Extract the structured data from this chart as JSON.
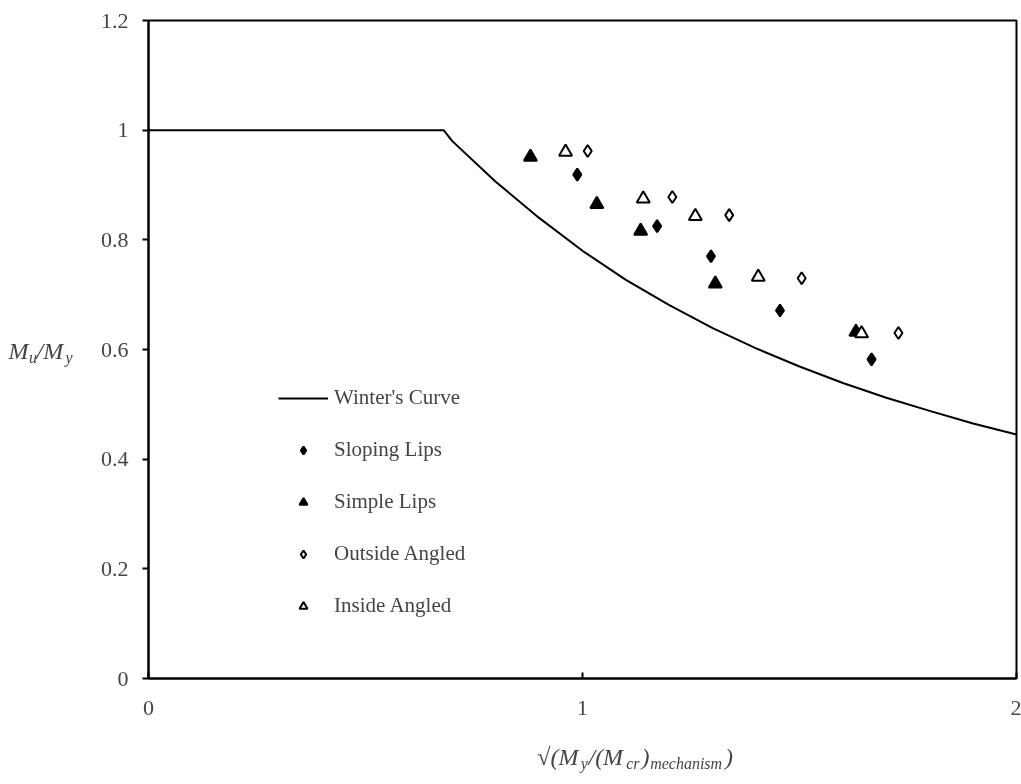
{
  "chart_data": {
    "type": "scatter",
    "xlabel": "√(M$_{y}$/(M$_{cr}$)$_{mechanism}$)",
    "ylabel": "M$_{u}$/M$_{y}$",
    "xlim": [
      0,
      2
    ],
    "xticks": [
      0,
      1,
      2
    ],
    "ylim": [
      0,
      1.2
    ],
    "yticks": [
      0,
      0.2,
      0.4,
      0.6,
      0.8,
      1,
      1.2
    ],
    "grid": false,
    "legend": "left",
    "series": [
      {
        "name": "Winter's Curve",
        "type": "line",
        "marker": "none",
        "line_style": "solid",
        "color": "#000000",
        "x": [
          0,
          0.2,
          0.4,
          0.6,
          0.68,
          0.7,
          0.8,
          0.9,
          1.0,
          1.1,
          1.2,
          1.3,
          1.4,
          1.5,
          1.6,
          1.7,
          1.8,
          1.9,
          2.0
        ],
        "values": [
          1,
          1,
          1,
          1,
          1,
          0.98,
          0.906,
          0.84,
          0.78,
          0.727,
          0.681,
          0.639,
          0.602,
          0.569,
          0.539,
          0.512,
          0.488,
          0.465,
          0.445
        ]
      },
      {
        "name": "Sloping Lips",
        "marker": "diamond",
        "color": "#000000",
        "x": [
          0.988,
          1.172,
          1.296,
          1.455,
          1.666
        ],
        "values": [
          0.919,
          0.825,
          0.77,
          0.671,
          0.582
        ]
      },
      {
        "name": "Simple Lips",
        "marker": "triangle",
        "color": "#000000",
        "x": [
          0.88,
          1.033,
          1.134,
          1.306,
          1.63
        ],
        "values": [
          0.951,
          0.865,
          0.816,
          0.72,
          0.632
        ]
      },
      {
        "name": "Outside Angled",
        "marker": "diamond-open",
        "color": "#000000",
        "x": [
          1.012,
          1.207,
          1.338,
          1.505,
          1.728
        ],
        "values": [
          0.962,
          0.878,
          0.845,
          0.73,
          0.63
        ]
      },
      {
        "name": "Inside Angled",
        "marker": "triangle-open",
        "color": "#000000",
        "x": [
          0.961,
          1.14,
          1.26,
          1.405,
          1.643
        ],
        "values": [
          0.96,
          0.875,
          0.843,
          0.732,
          0.629
        ]
      }
    ]
  }
}
